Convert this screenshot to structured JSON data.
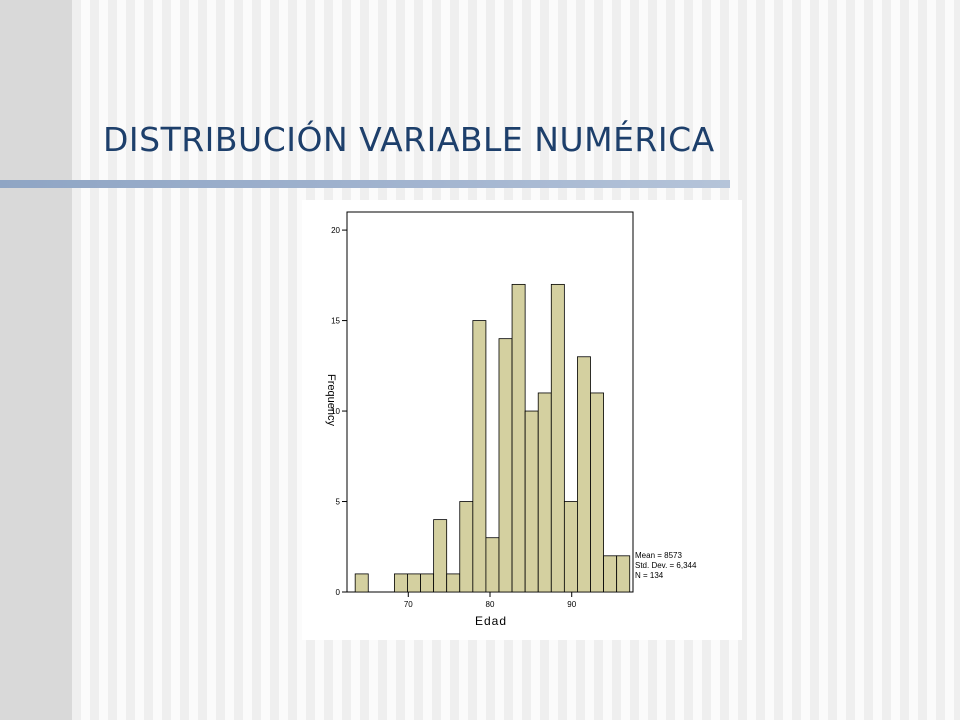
{
  "slide": {
    "title": "DISTRIBUCIÓN VARIABLE NUMÉRICA"
  },
  "chart_data": {
    "type": "bar",
    "title": "",
    "xlabel": "Edad",
    "ylabel": "Frequency",
    "bin_start": 63.5,
    "bin_width": 1.6,
    "values": [
      1,
      0,
      0,
      1,
      1,
      1,
      4,
      1,
      5,
      15,
      3,
      14,
      17,
      10,
      11,
      17,
      5,
      13,
      11,
      2,
      2
    ],
    "xlim": [
      62.5,
      97.5
    ],
    "ylim": [
      0,
      21
    ],
    "x_ticks": [
      "70",
      "80",
      "90"
    ],
    "y_ticks": [
      "0",
      "5",
      "10",
      "15",
      "20"
    ],
    "bar_color": "#d4d0a0",
    "grid": false,
    "stats": {
      "mean": "Mean = 8573",
      "std": "Std. Dev. = 6,344",
      "n": "N = 134"
    }
  }
}
